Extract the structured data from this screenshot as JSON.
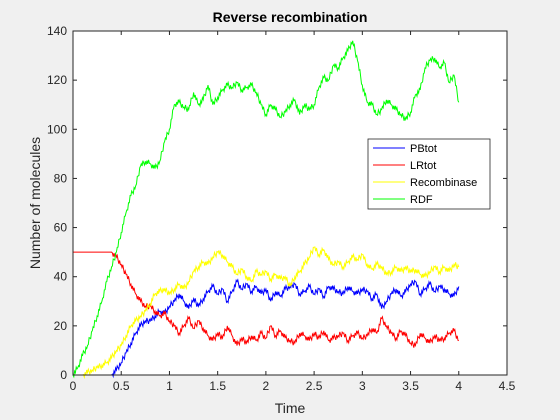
{
  "chart_data": {
    "type": "line",
    "title": "Reverse recombination",
    "xlabel": "Time",
    "ylabel": "Number of molecules",
    "xlim": [
      0,
      4.5
    ],
    "ylim": [
      0,
      140
    ],
    "xticks": [
      "0",
      "0.5",
      "1",
      "1.5",
      "2",
      "2.5",
      "3",
      "3.5",
      "4",
      "4.5"
    ],
    "yticks": [
      "0",
      "20",
      "40",
      "60",
      "80",
      "100",
      "120",
      "140"
    ],
    "grid": false,
    "legend_location": "right",
    "series": [
      {
        "name": "PBtot",
        "color": "#0000ff",
        "x": [
          0,
          0.4,
          0.45,
          0.5,
          0.55,
          0.6,
          0.65,
          0.7,
          0.75,
          0.8,
          0.85,
          0.9,
          0.95,
          1.0,
          1.05,
          1.1,
          1.15,
          1.2,
          1.25,
          1.3,
          1.35,
          1.4,
          1.45,
          1.5,
          1.55,
          1.6,
          1.65,
          1.7,
          1.75,
          1.8,
          1.85,
          1.9,
          1.95,
          2.0,
          2.05,
          2.1,
          2.15,
          2.2,
          2.25,
          2.3,
          2.35,
          2.4,
          2.45,
          2.5,
          2.55,
          2.6,
          2.65,
          2.7,
          2.75,
          2.8,
          2.85,
          2.9,
          2.95,
          3.0,
          3.05,
          3.1,
          3.15,
          3.2,
          3.25,
          3.3,
          3.35,
          3.4,
          3.45,
          3.5,
          3.55,
          3.6,
          3.65,
          3.7,
          3.75,
          3.8,
          3.85,
          3.9,
          3.95,
          4.0
        ],
        "y": [
          0,
          0,
          2,
          5,
          9,
          13,
          17,
          20,
          22,
          22,
          24,
          26,
          25,
          28,
          30,
          33,
          30,
          27,
          31,
          28,
          31,
          34,
          36,
          33,
          35,
          30,
          34,
          38,
          35,
          37,
          34,
          36,
          33,
          35,
          30,
          34,
          32,
          35,
          36,
          37,
          33,
          34,
          36,
          33,
          35,
          32,
          36,
          35,
          34,
          33,
          36,
          34,
          33,
          35,
          34,
          31,
          33,
          27,
          30,
          33,
          35,
          32,
          34,
          37,
          38,
          33,
          35,
          37,
          34,
          36,
          35,
          33,
          32,
          36
        ]
      },
      {
        "name": "LRtot",
        "color": "#ff0000",
        "x": [
          0,
          0.4,
          0.45,
          0.5,
          0.55,
          0.6,
          0.65,
          0.7,
          0.75,
          0.8,
          0.85,
          0.9,
          0.95,
          1.0,
          1.05,
          1.1,
          1.15,
          1.2,
          1.25,
          1.3,
          1.35,
          1.4,
          1.45,
          1.5,
          1.55,
          1.6,
          1.65,
          1.7,
          1.75,
          1.8,
          1.85,
          1.9,
          1.95,
          2.0,
          2.05,
          2.1,
          2.15,
          2.2,
          2.25,
          2.3,
          2.35,
          2.4,
          2.45,
          2.5,
          2.55,
          2.6,
          2.65,
          2.7,
          2.75,
          2.8,
          2.85,
          2.9,
          2.95,
          3.0,
          3.05,
          3.1,
          3.15,
          3.2,
          3.25,
          3.3,
          3.35,
          3.4,
          3.45,
          3.5,
          3.55,
          3.6,
          3.65,
          3.7,
          3.75,
          3.8,
          3.85,
          3.9,
          3.95,
          4.0
        ],
        "y": [
          50,
          50,
          48,
          45,
          41,
          37,
          33,
          30,
          28,
          28,
          26,
          24,
          25,
          22,
          20,
          17,
          20,
          23,
          19,
          22,
          19,
          16,
          14,
          17,
          15,
          20,
          16,
          12,
          15,
          13,
          16,
          14,
          17,
          15,
          20,
          16,
          18,
          15,
          14,
          13,
          17,
          16,
          14,
          17,
          15,
          18,
          14,
          15,
          16,
          17,
          14,
          16,
          17,
          15,
          16,
          19,
          17,
          23,
          20,
          17,
          15,
          18,
          16,
          13,
          12,
          17,
          15,
          13,
          16,
          14,
          15,
          17,
          18,
          14
        ]
      },
      {
        "name": "Recombinase",
        "color": "#ffff00",
        "x": [
          0,
          0.1,
          0.15,
          0.2,
          0.25,
          0.3,
          0.35,
          0.4,
          0.45,
          0.5,
          0.55,
          0.6,
          0.65,
          0.7,
          0.75,
          0.8,
          0.85,
          0.9,
          0.95,
          1.0,
          1.05,
          1.1,
          1.15,
          1.2,
          1.25,
          1.3,
          1.35,
          1.4,
          1.45,
          1.5,
          1.55,
          1.6,
          1.65,
          1.7,
          1.75,
          1.8,
          1.85,
          1.9,
          1.95,
          2.0,
          2.05,
          2.1,
          2.15,
          2.2,
          2.25,
          2.3,
          2.35,
          2.4,
          2.45,
          2.5,
          2.55,
          2.6,
          2.65,
          2.7,
          2.75,
          2.8,
          2.85,
          2.9,
          2.95,
          3.0,
          3.05,
          3.1,
          3.15,
          3.2,
          3.25,
          3.3,
          3.35,
          3.4,
          3.45,
          3.5,
          3.55,
          3.6,
          3.65,
          3.7,
          3.75,
          3.8,
          3.85,
          3.9,
          3.95,
          4.0
        ],
        "y": [
          0,
          0,
          1,
          2,
          3,
          4,
          5,
          7,
          10,
          12,
          16,
          20,
          22,
          24,
          26,
          29,
          33,
          34,
          35,
          33,
          35,
          37,
          35,
          38,
          42,
          44,
          46,
          45,
          48,
          50,
          49,
          46,
          44,
          41,
          43,
          40,
          38,
          42,
          41,
          42,
          39,
          41,
          39,
          40,
          36,
          40,
          42,
          45,
          48,
          52,
          49,
          51,
          47,
          45,
          46,
          44,
          46,
          48,
          47,
          49,
          45,
          43,
          45,
          44,
          41,
          42,
          44,
          42,
          44,
          42,
          43,
          41,
          40,
          42,
          44,
          42,
          44,
          42,
          45,
          44
        ]
      },
      {
        "name": "RDF",
        "color": "#00ff00",
        "x": [
          0,
          0.05,
          0.1,
          0.15,
          0.2,
          0.25,
          0.3,
          0.35,
          0.4,
          0.45,
          0.5,
          0.55,
          0.6,
          0.65,
          0.7,
          0.75,
          0.8,
          0.85,
          0.9,
          0.95,
          1.0,
          1.05,
          1.1,
          1.15,
          1.2,
          1.25,
          1.3,
          1.35,
          1.4,
          1.45,
          1.5,
          1.55,
          1.6,
          1.65,
          1.7,
          1.75,
          1.8,
          1.85,
          1.9,
          1.95,
          2.0,
          2.05,
          2.1,
          2.15,
          2.2,
          2.25,
          2.3,
          2.35,
          2.4,
          2.45,
          2.5,
          2.55,
          2.6,
          2.65,
          2.7,
          2.75,
          2.8,
          2.85,
          2.9,
          2.95,
          3.0,
          3.05,
          3.1,
          3.15,
          3.2,
          3.25,
          3.3,
          3.35,
          3.4,
          3.45,
          3.5,
          3.55,
          3.6,
          3.65,
          3.7,
          3.75,
          3.8,
          3.85,
          3.9,
          3.95,
          4.0
        ],
        "y": [
          0,
          3,
          8,
          12,
          18,
          24,
          30,
          38,
          44,
          50,
          58,
          66,
          73,
          77,
          85,
          87,
          86,
          84,
          87,
          95,
          100,
          110,
          111,
          109,
          108,
          115,
          110,
          112,
          118,
          110,
          113,
          116,
          118,
          117,
          119,
          116,
          117,
          118,
          115,
          110,
          106,
          110,
          108,
          105,
          107,
          110,
          112,
          106,
          110,
          108,
          110,
          117,
          121,
          120,
          126,
          125,
          129,
          132,
          136,
          128,
          118,
          111,
          110,
          106,
          108,
          112,
          110,
          108,
          106,
          104,
          107,
          114,
          116,
          125,
          128,
          129,
          125,
          127,
          119,
          122,
          111
        ]
      }
    ]
  }
}
